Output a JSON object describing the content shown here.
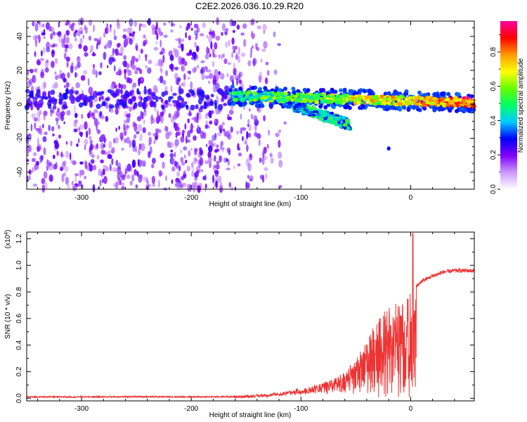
{
  "title": "C2E2.2026.036.10.29.R20",
  "chart_data": [
    {
      "type": "heatmap",
      "name": "spectrogram",
      "xlabel": "Height of straight line (km)",
      "ylabel": "Frequency (Hz)",
      "xlim": [
        -350,
        58
      ],
      "ylim": [
        -50,
        49
      ],
      "xticks": [
        -300,
        -200,
        -100,
        0
      ],
      "xtick_labels": [
        "-300",
        "-200",
        "-100",
        "0"
      ],
      "yticks": [
        -40,
        -20,
        0,
        20,
        40
      ],
      "ytick_labels": [
        "-40",
        "-20",
        "0",
        "20",
        "40"
      ],
      "colorbar": {
        "label": "Normalized spectral amplitude",
        "range": [
          0.0,
          0.98
        ],
        "ticks": [
          0.0,
          0.2,
          0.4,
          0.6,
          0.8
        ],
        "tick_labels": [
          "0.0",
          "0.2",
          "0.4",
          "0.6",
          "0.8"
        ],
        "colormap": [
          "#ffffff",
          "#cc99ff",
          "#8000ff",
          "#0000ff",
          "#00ccff",
          "#00ff66",
          "#66ff00",
          "#ffff00",
          "#ff9900",
          "#ff0000",
          "#ff0099"
        ]
      },
      "features": [
        {
          "label": "noise field",
          "x_range": [
            -350,
            -120
          ],
          "freq_range": [
            -50,
            49
          ],
          "amplitude": 0.1
        },
        {
          "label": "signal band",
          "x_start": -165,
          "x_end": 58,
          "freq_start": 5,
          "freq_end": 1,
          "amplitude": 0.9
        },
        {
          "label": "secondary band",
          "x_start": -110,
          "x_end": -55,
          "freq_start": 0,
          "freq_end": -12,
          "amplitude": 0.45
        }
      ]
    },
    {
      "type": "line",
      "name": "snr",
      "xlabel": "Height of straight line (km)",
      "ylabel": "SNR (10 * v/v)",
      "y_scale_label": "(x10",
      "y_scale_exponent": "4",
      "y_scale_suffix": ")",
      "xlim": [
        -350,
        58
      ],
      "ylim": [
        -0.02,
        1.25
      ],
      "xticks": [
        -300,
        -200,
        -100,
        0
      ],
      "xtick_labels": [
        "-300",
        "-200",
        "-100",
        "0"
      ],
      "yticks": [
        0.0,
        0.2,
        0.4,
        0.6,
        0.8,
        1.0,
        1.2
      ],
      "ytick_labels": [
        "0.0",
        "0.2",
        "0.4",
        "0.6",
        "0.8",
        "1.0",
        "1.2"
      ],
      "color": "#ee3333",
      "series": [
        {
          "name": "SNR",
          "x": [
            -350,
            -300,
            -250,
            -200,
            -160,
            -140,
            -120,
            -100,
            -90,
            -80,
            -70,
            -60,
            -50,
            -40,
            -30,
            -20,
            -10,
            -5,
            0,
            10,
            20,
            30,
            40,
            50,
            58
          ],
          "y": [
            0.01,
            0.01,
            0.012,
            0.01,
            0.012,
            0.02,
            0.04,
            0.07,
            0.09,
            0.12,
            0.15,
            0.2,
            0.3,
            0.45,
            0.6,
            0.7,
            0.75,
            0.78,
            0.8,
            0.88,
            0.92,
            0.95,
            0.96,
            0.96,
            0.96
          ]
        }
      ]
    }
  ]
}
